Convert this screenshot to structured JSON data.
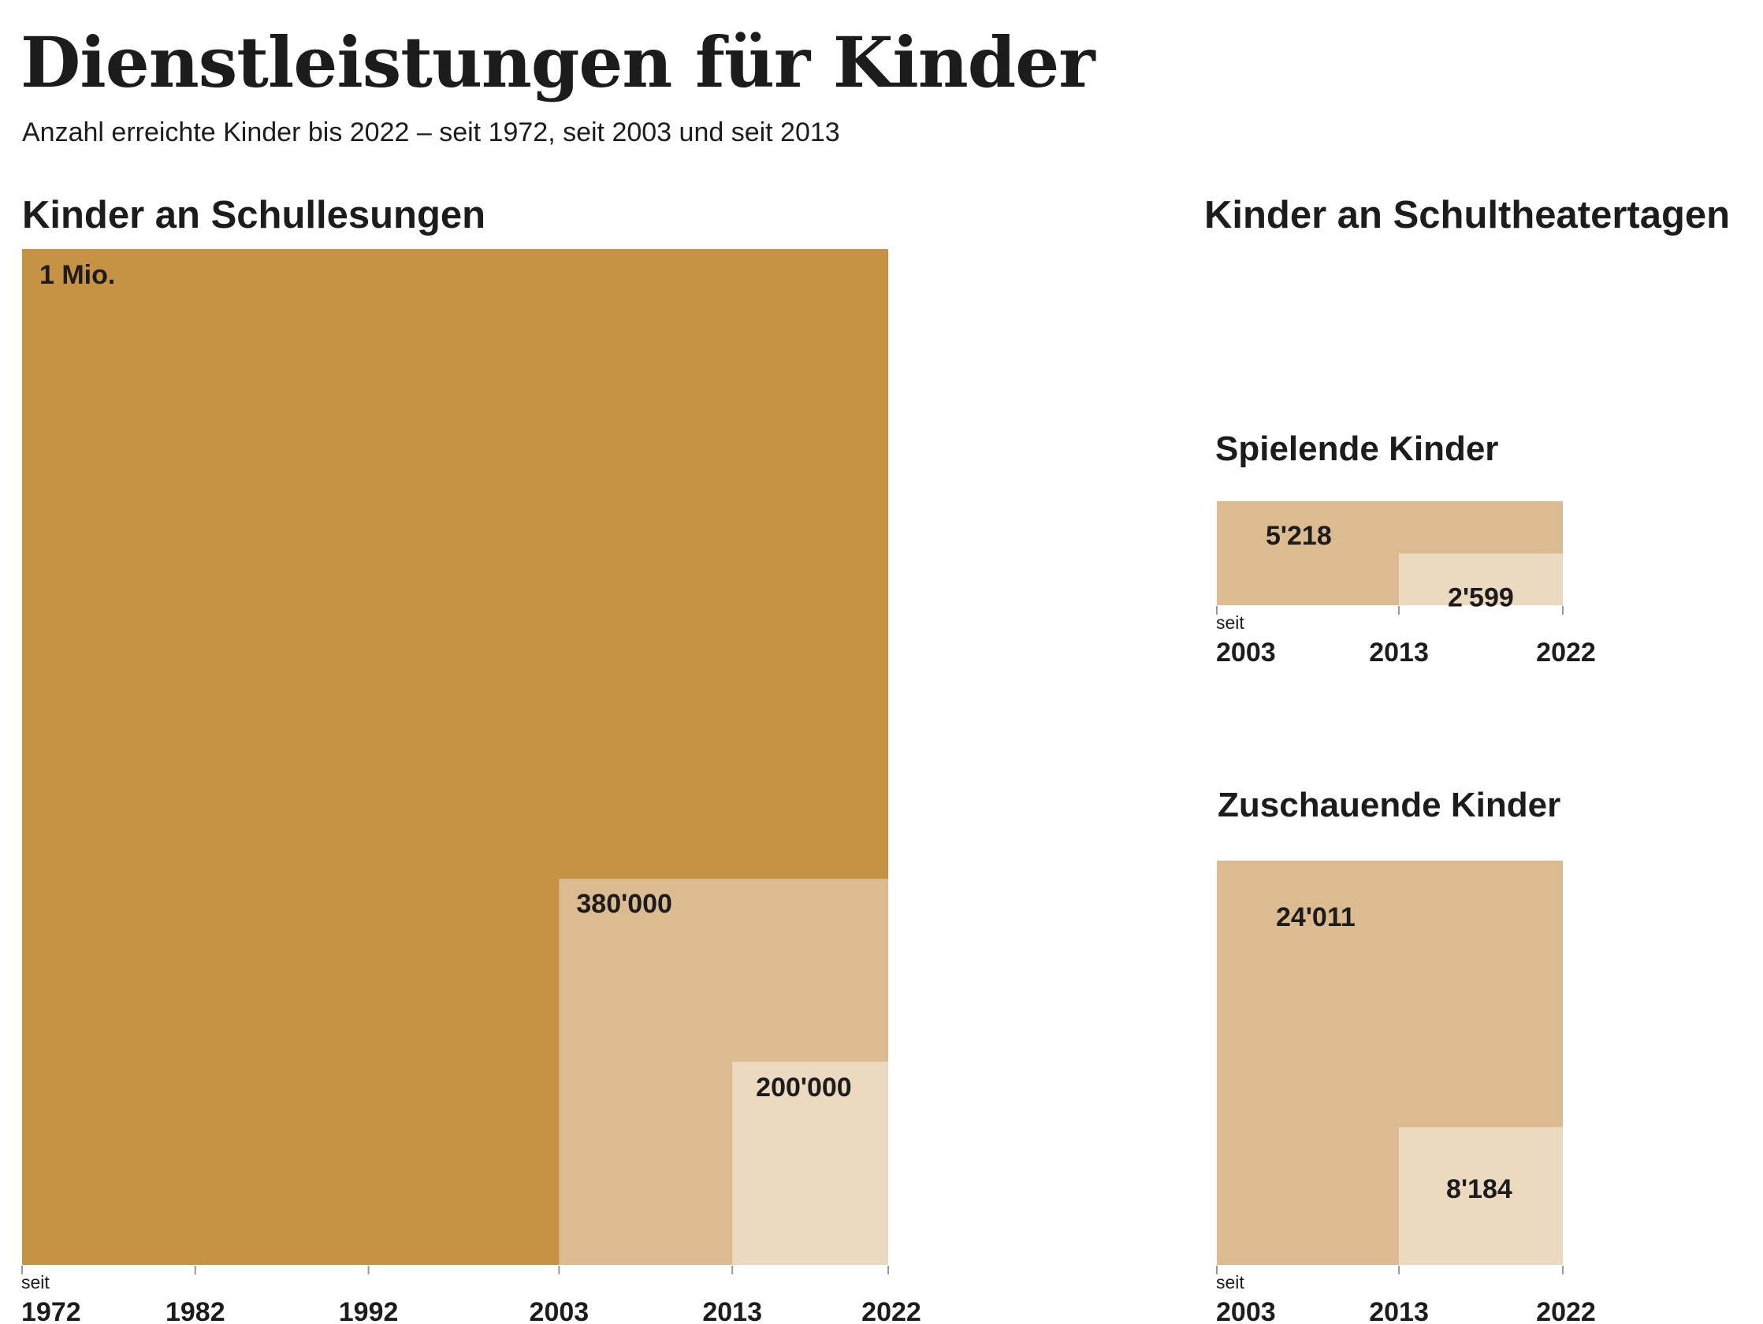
{
  "header": {
    "title": "Dienstleistungen für Kinder",
    "subtitle": "Anzahl erreichte Kinder bis 2022 – seit 1972, seit 2003 und seit 2013"
  },
  "colors": {
    "dark": "#c59343",
    "mid": "#dbbb8f",
    "light": "#ebd9c0",
    "axis": "#999999"
  },
  "chart_data": [
    {
      "type": "area",
      "title": "Kinder an Schullesungen",
      "xlabel": "",
      "ylabel": "",
      "xlim": [
        1972,
        2022
      ],
      "ylim": [
        0,
        1000000
      ],
      "grid": false,
      "tick_prefix": "seit",
      "x_ticks": [
        1972,
        1982,
        1992,
        2003,
        2013,
        2022
      ],
      "series": [
        {
          "start": 1972,
          "end": 2022,
          "value": 1000000,
          "label": "1 Mio.",
          "color": "dark"
        },
        {
          "start": 2003,
          "end": 2022,
          "value": 380000,
          "label": "380'000",
          "color": "mid"
        },
        {
          "start": 2013,
          "end": 2022,
          "value": 200000,
          "label": "200'000",
          "color": "light"
        }
      ]
    },
    {
      "type": "area",
      "title": "Spielende Kinder",
      "group_title": "Kinder an Schultheatertagen",
      "xlabel": "",
      "ylabel": "",
      "xlim": [
        2003,
        2022
      ],
      "grid": false,
      "tick_prefix": "seit",
      "x_ticks": [
        2003,
        2013,
        2022
      ],
      "series": [
        {
          "start": 2003,
          "end": 2022,
          "value": 5218,
          "label": "5'218",
          "color": "mid"
        },
        {
          "start": 2013,
          "end": 2022,
          "value": 2599,
          "label": "2'599",
          "color": "light"
        }
      ]
    },
    {
      "type": "area",
      "title": "Zuschauende Kinder",
      "group_title": "Kinder an Schultheatertagen",
      "xlabel": "",
      "ylabel": "",
      "xlim": [
        2003,
        2022
      ],
      "grid": false,
      "tick_prefix": "seit",
      "x_ticks": [
        2003,
        2013,
        2022
      ],
      "series": [
        {
          "start": 2003,
          "end": 2022,
          "value": 24011,
          "label": "24'011",
          "color": "mid"
        },
        {
          "start": 2013,
          "end": 2022,
          "value": 8184,
          "label": "8'184",
          "color": "light"
        }
      ]
    }
  ]
}
